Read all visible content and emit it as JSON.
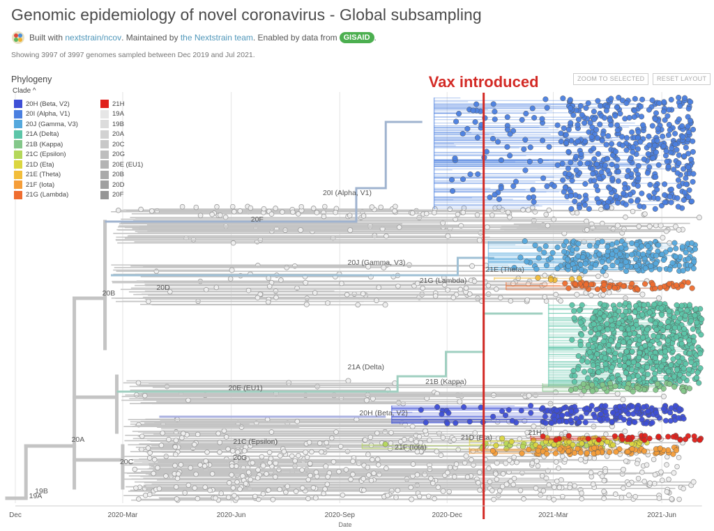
{
  "header": {
    "title": "Genomic epidemiology of novel coronavirus - Global subsampling",
    "built_with": "Built with",
    "repo_link": "nextstrain/ncov",
    "maintained_by": ". Maintained by",
    "team_link": "the Nextstrain team",
    "enabled_by": ". Enabled by data from",
    "gisaid_label": "GISAID",
    "tail": ".",
    "summary": "Showing 3997 of 3997 genomes sampled between Dec 2019 and Jul 2021."
  },
  "panel": {
    "title": "Phylogeny",
    "zoom_button": "ZOOM TO SELECTED",
    "reset_button": "RESET LAYOUT",
    "legend_toggle": "Clade ^"
  },
  "legend": [
    {
      "label": "20H (Beta, V2)",
      "color": "#3e4fd6"
    },
    {
      "label": "20I (Alpha, V1)",
      "color": "#4a7fe0"
    },
    {
      "label": "20J (Gamma, V3)",
      "color": "#55a8dd"
    },
    {
      "label": "21A (Delta)",
      "color": "#5cc5a8"
    },
    {
      "label": "21B (Kappa)",
      "color": "#84c78a"
    },
    {
      "label": "21C (Epsilon)",
      "color": "#b4d75a"
    },
    {
      "label": "21D (Eta)",
      "color": "#dbd63f"
    },
    {
      "label": "21E (Theta)",
      "color": "#f2bd3a"
    },
    {
      "label": "21F (Iota)",
      "color": "#f59d38"
    },
    {
      "label": "21G (Lambda)",
      "color": "#ef6d2f"
    },
    {
      "label": "21H",
      "color": "#e0201b"
    },
    {
      "label": "19A",
      "color": "#e6e6e6"
    },
    {
      "label": "19B",
      "color": "#dcdcdc"
    },
    {
      "label": "20A",
      "color": "#d2d2d2"
    },
    {
      "label": "20C",
      "color": "#c8c8c8"
    },
    {
      "label": "20G",
      "color": "#bebebe"
    },
    {
      "label": "20E (EU1)",
      "color": "#b4b4b4"
    },
    {
      "label": "20B",
      "color": "#aaaaaa"
    },
    {
      "label": "20D",
      "color": "#a0a0a0"
    },
    {
      "label": "20F",
      "color": "#969696"
    }
  ],
  "chart_data": {
    "type": "scatter",
    "xlabel": "Date",
    "x_ticks": [
      "Dec",
      "2020-Mar",
      "2020-Jun",
      "2020-Sep",
      "2020-Dec",
      "2021-Mar",
      "2021-Jun"
    ],
    "x_range": [
      "2019-12",
      "2021-07"
    ],
    "annotation": {
      "label": "Vax introduced",
      "date": "2021-01",
      "color": "#d32a25"
    },
    "clade_labels": [
      {
        "label": "20I (Alpha, V1)",
        "date": "2020-08-20"
      },
      {
        "label": "20F",
        "date": "2020-06-20"
      },
      {
        "label": "20J (Gamma, V3)",
        "date": "2020-09-10"
      },
      {
        "label": "21E (Theta)",
        "date": "2021-01-05"
      },
      {
        "label": "21G (Lambda)",
        "date": "2020-11-10"
      },
      {
        "label": "20D",
        "date": "2020-04-01"
      },
      {
        "label": "20B",
        "date": "2020-02-15"
      },
      {
        "label": "21A (Delta)",
        "date": "2020-09-10"
      },
      {
        "label": "20E (EU1)",
        "date": "2020-06-01"
      },
      {
        "label": "21B (Kappa)",
        "date": "2020-11-15"
      },
      {
        "label": "20H (Beta, V2)",
        "date": "2020-09-20"
      },
      {
        "label": "21H",
        "date": "2021-02-10"
      },
      {
        "label": "21D (Eta)",
        "date": "2020-12-15"
      },
      {
        "label": "21C (Epsilon)",
        "date": "2020-06-05"
      },
      {
        "label": "21F (Iota)",
        "date": "2020-10-20"
      },
      {
        "label": "20A",
        "date": "2020-01-20"
      },
      {
        "label": "20C",
        "date": "2020-03-01"
      },
      {
        "label": "20G",
        "date": "2020-06-05"
      },
      {
        "label": "19B",
        "date": "2019-12-20"
      },
      {
        "label": "19A",
        "date": "2019-12-15"
      }
    ],
    "grid": "vertical"
  }
}
